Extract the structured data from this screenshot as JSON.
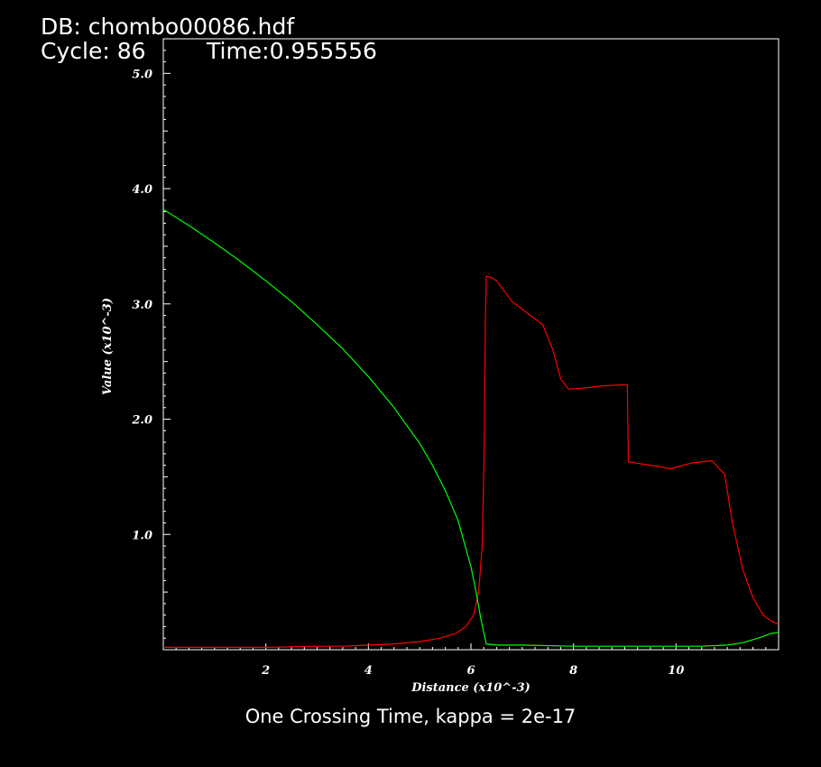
{
  "header": {
    "db": "DB: chombo00086.hdf",
    "cycle": "Cycle: 86",
    "time": "Time:0.955556"
  },
  "caption": "One Crossing Time, kappa = 2e-17",
  "colors": {
    "background": "#000000",
    "frame": "#ffffff",
    "series_red": "#ff0000",
    "series_green": "#00ff00"
  },
  "chart_data": {
    "type": "line",
    "xlabel": "Distance (x10^-3)",
    "ylabel": "Value (x10^-3)",
    "xlim": [
      0,
      12
    ],
    "ylim": [
      0,
      5.3
    ],
    "xticks": [
      2,
      4,
      6,
      8,
      10
    ],
    "xtick_labels": [
      "2",
      "4",
      "6",
      "8",
      "10"
    ],
    "yticks": [
      1.0,
      2.0,
      3.0,
      4.0,
      5.0
    ],
    "ytick_labels": [
      "1.0",
      "2.0",
      "3.0",
      "4.0",
      "5.0"
    ],
    "grid": false,
    "legend": "none",
    "series": [
      {
        "color": "#ff0000",
        "x": [
          0,
          1,
          2,
          3,
          3.5,
          4,
          4.5,
          5,
          5.4,
          5.7,
          5.9,
          6.05,
          6.15,
          6.22,
          6.26,
          6.28,
          6.3,
          6.4,
          6.5,
          6.8,
          7.1,
          7.4,
          7.6,
          7.75,
          7.9,
          8.2,
          8.6,
          9.05,
          9.07,
          9.5,
          9.9,
          10.3,
          10.7,
          10.95,
          11.1,
          11.3,
          11.5,
          11.7,
          11.85,
          12
        ],
        "y": [
          0.02,
          0.02,
          0.02,
          0.03,
          0.03,
          0.04,
          0.05,
          0.07,
          0.1,
          0.14,
          0.2,
          0.3,
          0.5,
          0.9,
          1.8,
          2.8,
          3.24,
          3.23,
          3.2,
          3.02,
          2.92,
          2.82,
          2.6,
          2.35,
          2.26,
          2.27,
          2.29,
          2.3,
          1.63,
          1.6,
          1.57,
          1.62,
          1.64,
          1.52,
          1.1,
          0.7,
          0.45,
          0.3,
          0.25,
          0.22
        ]
      },
      {
        "color": "#00ff00",
        "x": [
          0,
          0.5,
          1,
          1.5,
          2,
          2.5,
          3,
          3.5,
          4,
          4.5,
          5,
          5.25,
          5.5,
          5.75,
          6,
          6.1,
          6.2,
          6.3,
          6.5,
          7,
          8,
          9,
          10,
          10.5,
          11,
          11.3,
          11.6,
          11.85,
          12
        ],
        "y": [
          3.82,
          3.68,
          3.53,
          3.37,
          3.2,
          3.02,
          2.82,
          2.61,
          2.37,
          2.1,
          1.79,
          1.6,
          1.38,
          1.12,
          0.72,
          0.5,
          0.25,
          0.05,
          0.04,
          0.04,
          0.03,
          0.03,
          0.03,
          0.03,
          0.04,
          0.06,
          0.1,
          0.14,
          0.15
        ]
      }
    ]
  }
}
